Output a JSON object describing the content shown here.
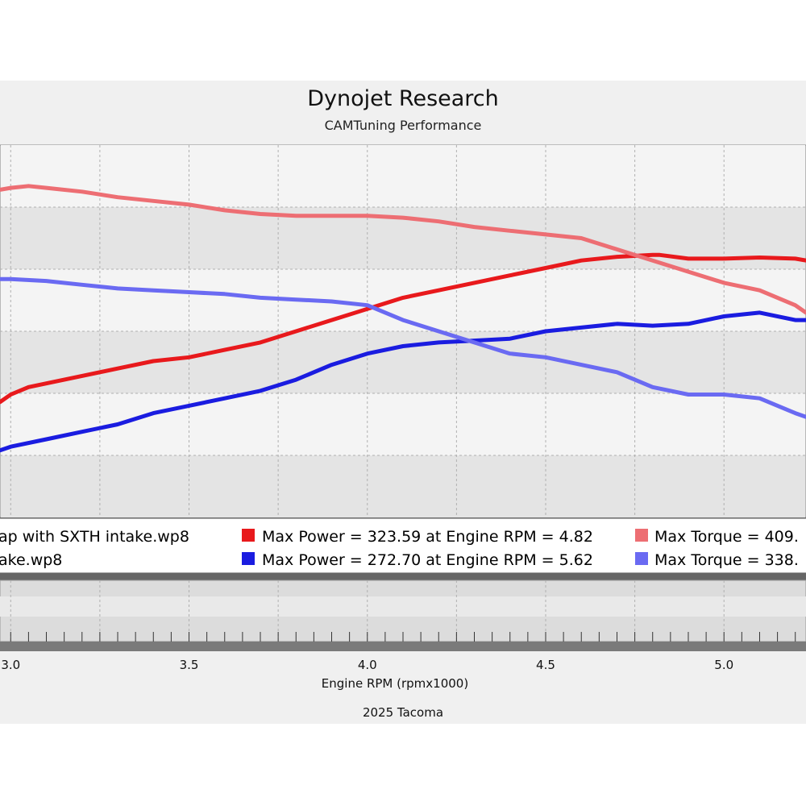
{
  "chart_data": {
    "type": "line",
    "title": "Dynojet Research",
    "subtitle": "CAMTuning Performance",
    "xlabel": "Engine RPM (rpmx1000)",
    "footer": "2025 Tacoma",
    "xlim": [
      2.97,
      5.23
    ],
    "x_ticks": [
      "3.0",
      "3.5",
      "4.0",
      "4.5",
      "5.0"
    ],
    "x_tick_values": [
      3.0,
      3.5,
      4.0,
      4.5,
      5.0
    ],
    "ylim": [
      0,
      100
    ],
    "grid": true,
    "legend_placement": "bottom",
    "legend": {
      "rows": [
        {
          "file": "ap with SXTH intake.wp8",
          "power": "Max Power = 323.59 at Engine RPM = 4.82",
          "torque": "Max Torque = 409."
        },
        {
          "file": "ake.wp8",
          "power": "Max Power = 272.70 at Engine RPM = 5.62",
          "torque": "Max Torque = 338."
        }
      ]
    },
    "series": [
      {
        "color": "#e8191c",
        "values": [
          [
            2.97,
            31
          ],
          [
            3.0,
            33
          ],
          [
            3.05,
            35
          ],
          [
            3.1,
            36
          ],
          [
            3.2,
            38
          ],
          [
            3.3,
            40
          ],
          [
            3.4,
            42
          ],
          [
            3.5,
            43
          ],
          [
            3.6,
            45
          ],
          [
            3.7,
            47
          ],
          [
            3.8,
            50
          ],
          [
            3.9,
            53
          ],
          [
            4.0,
            56
          ],
          [
            4.1,
            59
          ],
          [
            4.2,
            61
          ],
          [
            4.3,
            63
          ],
          [
            4.4,
            65
          ],
          [
            4.5,
            67
          ],
          [
            4.6,
            69
          ],
          [
            4.7,
            70
          ],
          [
            4.8,
            70.5
          ],
          [
            4.82,
            70.5
          ],
          [
            4.9,
            69.5
          ],
          [
            5.0,
            69.5
          ],
          [
            5.1,
            69.8
          ],
          [
            5.2,
            69.5
          ],
          [
            5.23,
            69
          ]
        ]
      },
      {
        "color": "#1a1ce0",
        "values": [
          [
            2.97,
            18
          ],
          [
            3.0,
            19
          ],
          [
            3.1,
            21
          ],
          [
            3.2,
            23
          ],
          [
            3.3,
            25
          ],
          [
            3.4,
            28
          ],
          [
            3.5,
            30
          ],
          [
            3.6,
            32
          ],
          [
            3.7,
            34
          ],
          [
            3.8,
            37
          ],
          [
            3.9,
            41
          ],
          [
            4.0,
            44
          ],
          [
            4.1,
            46
          ],
          [
            4.2,
            47
          ],
          [
            4.3,
            47.5
          ],
          [
            4.4,
            48
          ],
          [
            4.5,
            50
          ],
          [
            4.6,
            51
          ],
          [
            4.7,
            52
          ],
          [
            4.8,
            51.5
          ],
          [
            4.9,
            52
          ],
          [
            5.0,
            54
          ],
          [
            5.1,
            55
          ],
          [
            5.2,
            53
          ],
          [
            5.23,
            53
          ]
        ]
      },
      {
        "color": "#ed6e73",
        "values": [
          [
            2.97,
            88
          ],
          [
            3.0,
            88.5
          ],
          [
            3.05,
            89
          ],
          [
            3.1,
            88.5
          ],
          [
            3.2,
            87.5
          ],
          [
            3.3,
            86
          ],
          [
            3.4,
            85
          ],
          [
            3.5,
            84
          ],
          [
            3.6,
            82.5
          ],
          [
            3.7,
            81.5
          ],
          [
            3.8,
            81
          ],
          [
            3.9,
            81
          ],
          [
            4.0,
            81
          ],
          [
            4.1,
            80.5
          ],
          [
            4.2,
            79.5
          ],
          [
            4.3,
            78
          ],
          [
            4.4,
            77
          ],
          [
            4.5,
            76
          ],
          [
            4.6,
            75
          ],
          [
            4.7,
            72
          ],
          [
            4.8,
            69
          ],
          [
            4.9,
            66
          ],
          [
            5.0,
            63
          ],
          [
            5.1,
            61
          ],
          [
            5.2,
            57
          ],
          [
            5.23,
            55
          ]
        ]
      },
      {
        "color": "#6a6af2",
        "values": [
          [
            2.97,
            64
          ],
          [
            3.0,
            64
          ],
          [
            3.1,
            63.5
          ],
          [
            3.2,
            62.5
          ],
          [
            3.3,
            61.5
          ],
          [
            3.4,
            61
          ],
          [
            3.5,
            60.5
          ],
          [
            3.6,
            60
          ],
          [
            3.7,
            59
          ],
          [
            3.8,
            58.5
          ],
          [
            3.9,
            58
          ],
          [
            4.0,
            57
          ],
          [
            4.1,
            53
          ],
          [
            4.2,
            50
          ],
          [
            4.3,
            47
          ],
          [
            4.4,
            44
          ],
          [
            4.5,
            43
          ],
          [
            4.6,
            41
          ],
          [
            4.7,
            39
          ],
          [
            4.8,
            35
          ],
          [
            4.9,
            33
          ],
          [
            5.0,
            33
          ],
          [
            5.1,
            32
          ],
          [
            5.2,
            28
          ],
          [
            5.23,
            27
          ]
        ]
      }
    ]
  }
}
